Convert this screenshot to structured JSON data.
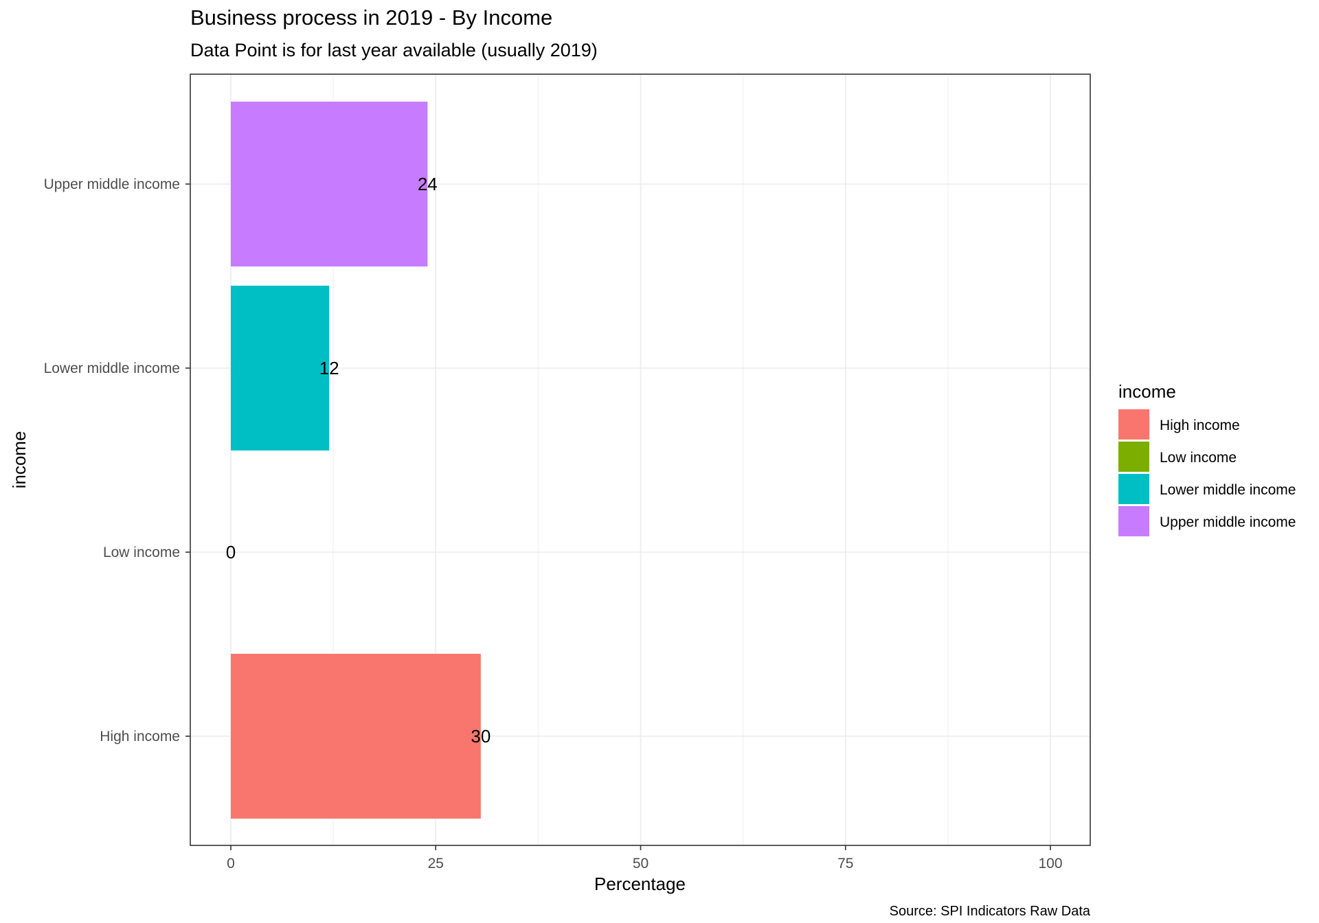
{
  "chart_data": {
    "type": "bar",
    "orientation": "horizontal",
    "title": "Business process in 2019 - By Income",
    "subtitle": "Data Point is for last year available (usually 2019)",
    "xlabel": "Percentage",
    "ylabel": "income",
    "xlim": [
      0,
      100
    ],
    "x_ticks": [
      0,
      25,
      50,
      75,
      100
    ],
    "categories": [
      "High income",
      "Low income",
      "Lower middle income",
      "Upper middle income"
    ],
    "values": [
      30.5,
      0,
      12,
      24
    ],
    "data_labels": [
      "30",
      "0",
      "12",
      "24"
    ],
    "colors": [
      "#F8766D",
      "#7CAE00",
      "#00BFC4",
      "#C77CFF"
    ],
    "legend": {
      "title": "income",
      "position": "right",
      "entries": [
        "High income",
        "Low income",
        "Lower middle income",
        "Upper middle income"
      ]
    },
    "grid": true,
    "caption": "Source: SPI Indicators Raw Data"
  }
}
